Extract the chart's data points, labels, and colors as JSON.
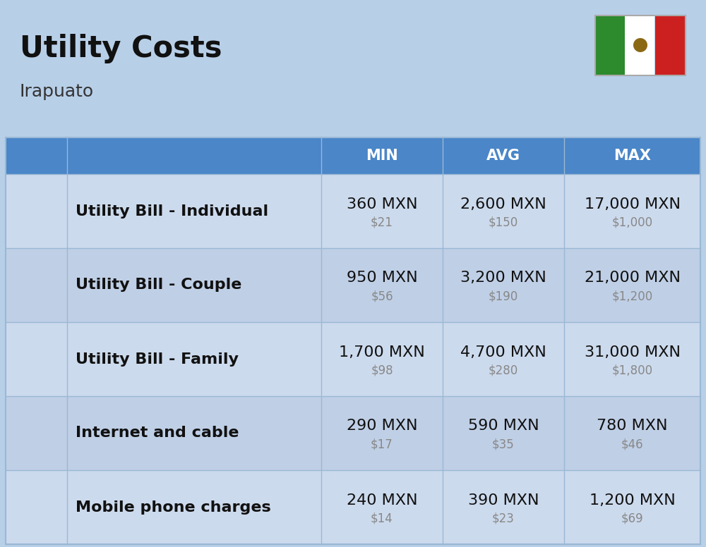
{
  "title": "Utility Costs",
  "subtitle": "Irapuato",
  "bg_color": "#b8cfe8",
  "header_bg_color": "#4a86c8",
  "header_text_color": "#ffffff",
  "row_colors": [
    "#ccdaed",
    "#bfcfe6"
  ],
  "divider_color": "#9ab8d4",
  "col_headers": [
    "MIN",
    "AVG",
    "MAX"
  ],
  "rows": [
    {
      "label": "Utility Bill - Individual",
      "min_mxn": "360 MXN",
      "min_usd": "$21",
      "avg_mxn": "2,600 MXN",
      "avg_usd": "$150",
      "max_mxn": "17,000 MXN",
      "max_usd": "$1,000"
    },
    {
      "label": "Utility Bill - Couple",
      "min_mxn": "950 MXN",
      "min_usd": "$56",
      "avg_mxn": "3,200 MXN",
      "avg_usd": "$190",
      "max_mxn": "21,000 MXN",
      "max_usd": "$1,200"
    },
    {
      "label": "Utility Bill - Family",
      "min_mxn": "1,700 MXN",
      "min_usd": "$98",
      "avg_mxn": "4,700 MXN",
      "avg_usd": "$280",
      "max_mxn": "31,000 MXN",
      "max_usd": "$1,800"
    },
    {
      "label": "Internet and cable",
      "min_mxn": "290 MXN",
      "min_usd": "$17",
      "avg_mxn": "590 MXN",
      "avg_usd": "$35",
      "max_mxn": "780 MXN",
      "max_usd": "$46"
    },
    {
      "label": "Mobile phone charges",
      "min_mxn": "240 MXN",
      "min_usd": "$14",
      "avg_mxn": "390 MXN",
      "avg_usd": "$23",
      "max_mxn": "1,200 MXN",
      "max_usd": "$69"
    }
  ],
  "title_fontsize": 30,
  "subtitle_fontsize": 18,
  "header_fontsize": 15,
  "label_fontsize": 16,
  "cell_mxn_fontsize": 16,
  "cell_usd_fontsize": 12,
  "flag_green": "#2d8a2d",
  "flag_white": "#ffffff",
  "flag_red": "#cc2020"
}
